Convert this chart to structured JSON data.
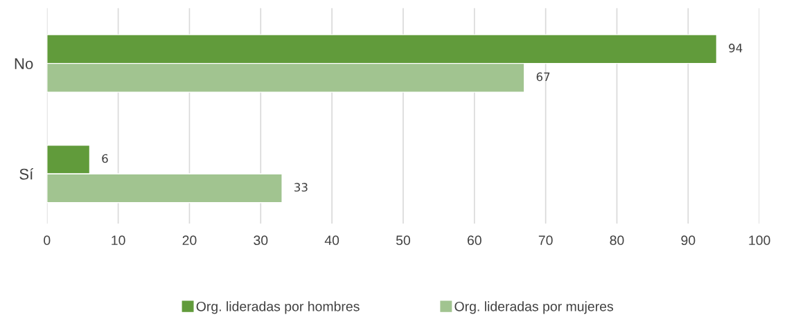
{
  "chart_data": {
    "type": "bar",
    "orientation": "horizontal",
    "categories": [
      "No",
      "Sí"
    ],
    "series": [
      {
        "name": "Org. lideradas por hombres",
        "color": "#619b3b",
        "values": [
          94,
          6
        ]
      },
      {
        "name": "Org. lideradas por mujeres",
        "color": "#a1c490",
        "values": [
          67,
          33
        ]
      }
    ],
    "xlim": [
      0,
      100
    ],
    "xticks": [
      0,
      10,
      20,
      30,
      40,
      50,
      60,
      70,
      80,
      90,
      100
    ],
    "grid": "x",
    "legend": "bottom",
    "data_labels": true
  }
}
